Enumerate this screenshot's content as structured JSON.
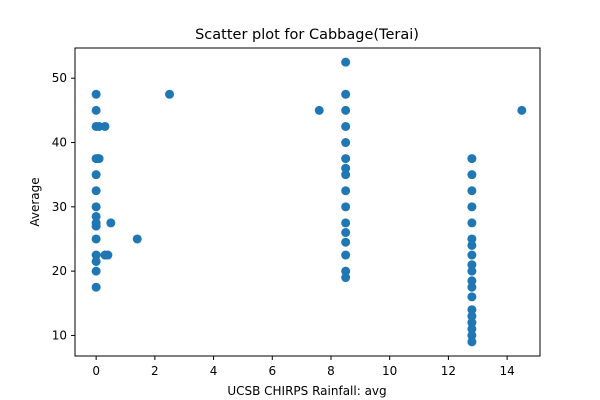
{
  "chart_data": {
    "type": "scatter",
    "title": "Scatter plot for Cabbage(Terai)",
    "xlabel": "UCSB CHIRPS Rainfall: avg",
    "ylabel": "Average",
    "xlim": [
      -0.72,
      15.12
    ],
    "ylim": [
      6.8,
      54.7
    ],
    "xticks": [
      0,
      2,
      4,
      6,
      8,
      10,
      12,
      14
    ],
    "yticks": [
      10,
      20,
      30,
      40,
      50
    ],
    "grid": false,
    "color": "#1f77b4",
    "points": [
      {
        "x": 0.0,
        "y": 47.5
      },
      {
        "x": 0.0,
        "y": 45.0
      },
      {
        "x": 0.0,
        "y": 42.5
      },
      {
        "x": 0.1,
        "y": 42.5
      },
      {
        "x": 0.3,
        "y": 42.5
      },
      {
        "x": 0.0,
        "y": 37.5
      },
      {
        "x": 0.1,
        "y": 37.5
      },
      {
        "x": 0.05,
        "y": 37.5
      },
      {
        "x": 0.0,
        "y": 35.0
      },
      {
        "x": 0.0,
        "y": 32.5
      },
      {
        "x": 0.0,
        "y": 30.0
      },
      {
        "x": 0.0,
        "y": 28.5
      },
      {
        "x": 0.0,
        "y": 27.5
      },
      {
        "x": 0.5,
        "y": 27.5
      },
      {
        "x": 0.0,
        "y": 27.0
      },
      {
        "x": 0.0,
        "y": 25.0
      },
      {
        "x": 1.4,
        "y": 25.0
      },
      {
        "x": 0.0,
        "y": 22.5
      },
      {
        "x": 0.3,
        "y": 22.5
      },
      {
        "x": 0.4,
        "y": 22.5
      },
      {
        "x": 0.0,
        "y": 21.5
      },
      {
        "x": 0.0,
        "y": 20.0
      },
      {
        "x": 0.0,
        "y": 17.5
      },
      {
        "x": 2.5,
        "y": 47.5
      },
      {
        "x": 7.6,
        "y": 45.0
      },
      {
        "x": 8.5,
        "y": 52.5
      },
      {
        "x": 8.5,
        "y": 47.5
      },
      {
        "x": 8.5,
        "y": 45.0
      },
      {
        "x": 8.5,
        "y": 42.5
      },
      {
        "x": 8.5,
        "y": 40.0
      },
      {
        "x": 8.5,
        "y": 37.5
      },
      {
        "x": 8.5,
        "y": 36.0
      },
      {
        "x": 8.5,
        "y": 35.0
      },
      {
        "x": 8.5,
        "y": 32.5
      },
      {
        "x": 8.5,
        "y": 30.0
      },
      {
        "x": 8.5,
        "y": 27.5
      },
      {
        "x": 8.5,
        "y": 26.0
      },
      {
        "x": 8.5,
        "y": 24.5
      },
      {
        "x": 8.5,
        "y": 22.5
      },
      {
        "x": 8.5,
        "y": 20.0
      },
      {
        "x": 8.5,
        "y": 19.0
      },
      {
        "x": 12.8,
        "y": 37.5
      },
      {
        "x": 12.8,
        "y": 35.0
      },
      {
        "x": 12.8,
        "y": 32.5
      },
      {
        "x": 12.8,
        "y": 30.0
      },
      {
        "x": 12.8,
        "y": 27.5
      },
      {
        "x": 12.8,
        "y": 25.0
      },
      {
        "x": 12.8,
        "y": 24.0
      },
      {
        "x": 12.8,
        "y": 22.5
      },
      {
        "x": 12.8,
        "y": 21.0
      },
      {
        "x": 12.8,
        "y": 20.0
      },
      {
        "x": 12.8,
        "y": 18.5
      },
      {
        "x": 12.8,
        "y": 17.5
      },
      {
        "x": 12.8,
        "y": 16.0
      },
      {
        "x": 12.8,
        "y": 14.0
      },
      {
        "x": 12.8,
        "y": 13.0
      },
      {
        "x": 12.8,
        "y": 12.0
      },
      {
        "x": 12.8,
        "y": 11.0
      },
      {
        "x": 12.8,
        "y": 10.0
      },
      {
        "x": 12.8,
        "y": 9.0
      },
      {
        "x": 14.5,
        "y": 45.0
      }
    ]
  }
}
